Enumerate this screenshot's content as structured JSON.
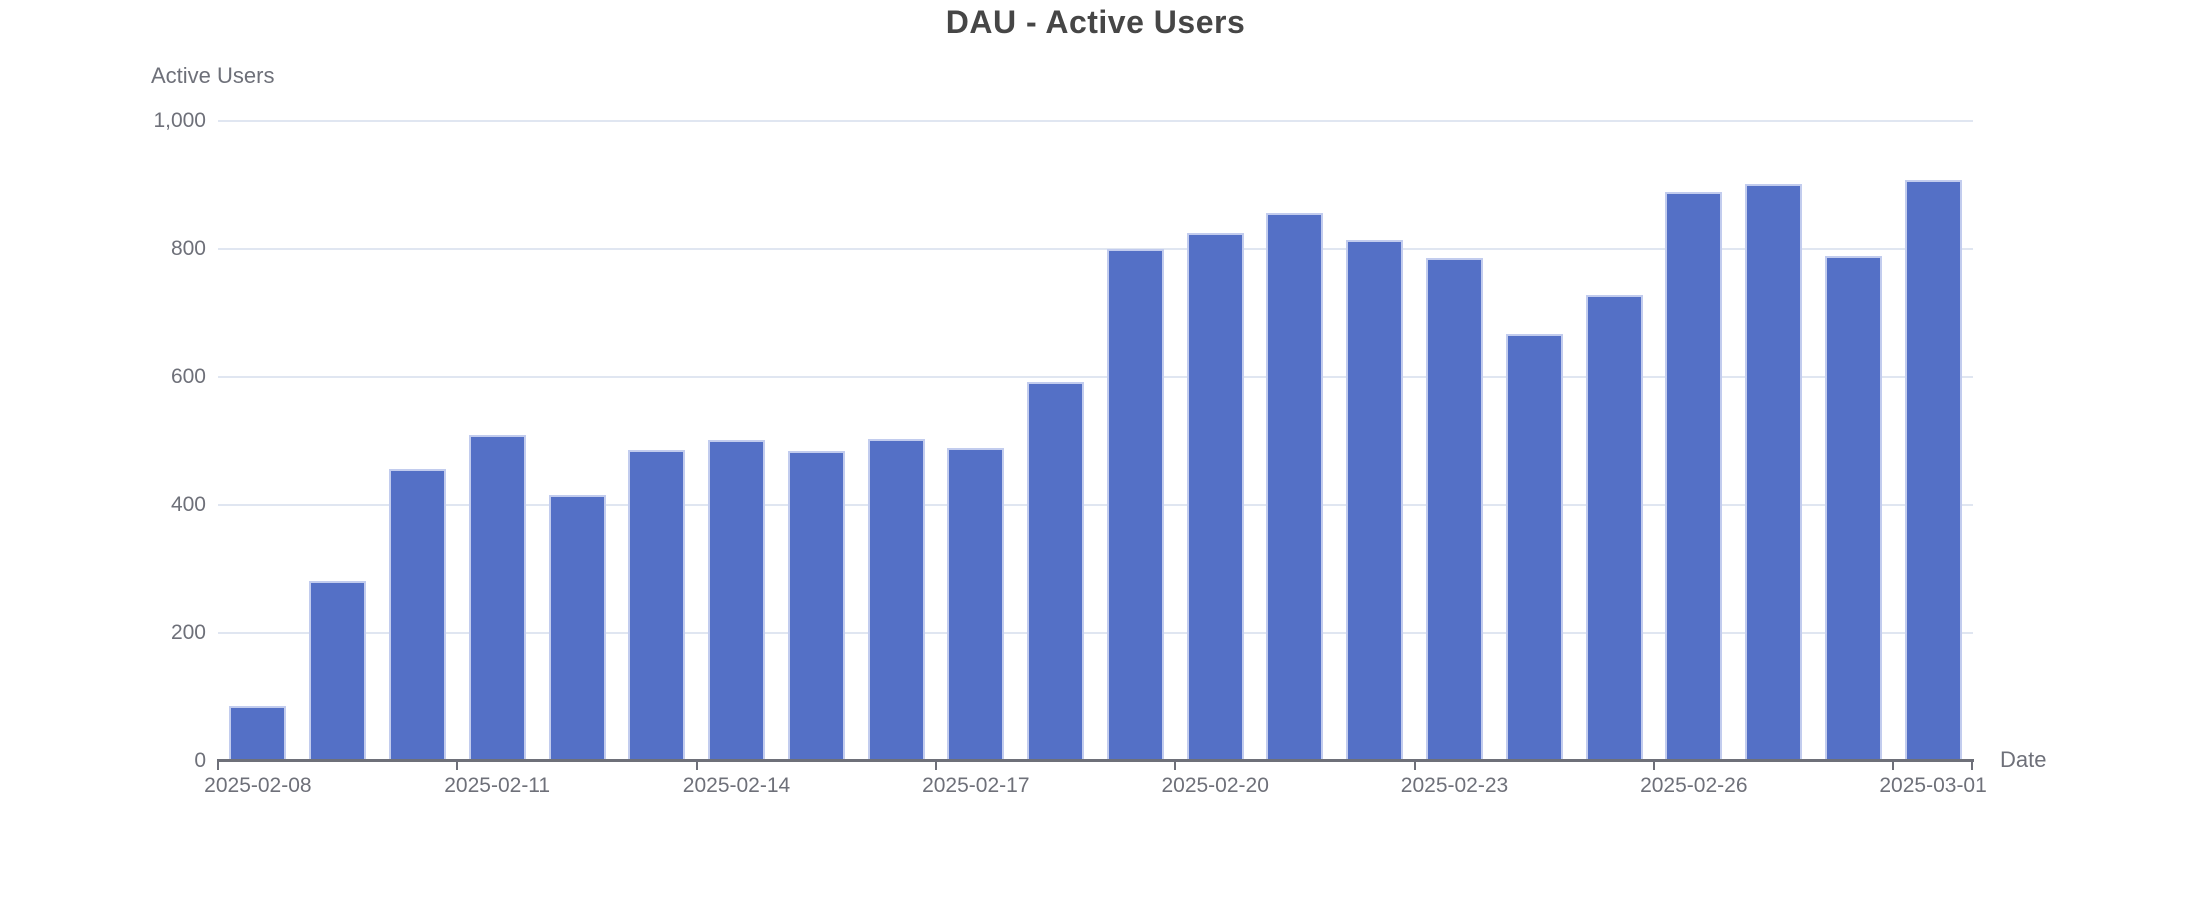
{
  "chart_data": {
    "type": "bar",
    "title": "DAU - Active Users",
    "xlabel": "Date",
    "ylabel": "Active Users",
    "x": [
      "2025-02-08",
      "2025-02-09",
      "2025-02-10",
      "2025-02-11",
      "2025-02-12",
      "2025-02-13",
      "2025-02-14",
      "2025-02-15",
      "2025-02-16",
      "2025-02-17",
      "2025-02-18",
      "2025-02-19",
      "2025-02-20",
      "2025-02-21",
      "2025-02-22",
      "2025-02-23",
      "2025-02-24",
      "2025-02-25",
      "2025-02-26",
      "2025-02-27",
      "2025-02-28",
      "2025-03-01"
    ],
    "values": [
      85,
      280,
      455,
      508,
      415,
      485,
      501,
      484,
      502,
      488,
      592,
      800,
      825,
      855,
      813,
      785,
      667,
      728,
      888,
      901,
      788,
      907
    ],
    "x_tick_labels": [
      "2025-02-08",
      "2025-02-11",
      "2025-02-14",
      "2025-02-17",
      "2025-02-20",
      "2025-02-23",
      "2025-02-26",
      "2025-03-01"
    ],
    "x_tick_label_every": 3,
    "y_tick_labels": [
      "0",
      "200",
      "400",
      "600",
      "800",
      "1,000"
    ],
    "y_tick_values": [
      0,
      200,
      400,
      600,
      800,
      1000
    ],
    "ylim": [
      0,
      1000
    ],
    "grid": true,
    "legend": "none",
    "colors": {
      "bar": "#5470C6",
      "bar_edge": "#C2CCEE",
      "grid": "#E0E6F1",
      "axis": "#6E7079",
      "label": "#6E7079",
      "title": "#464646"
    }
  }
}
